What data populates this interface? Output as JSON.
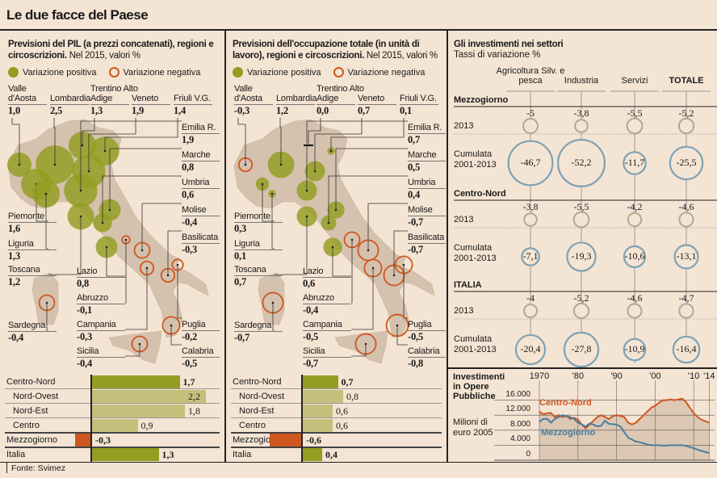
{
  "title": "Le due facce del Paese",
  "source": "Fonte: Svimez",
  "colors": {
    "positive": "#939d20",
    "positive_light": "#c4c07c",
    "negative": "#d0561f",
    "map": "#d4c2ae",
    "circle_2013": "#b5a68f",
    "circle_cum": "#7da2b6",
    "background": "#f4e4d3"
  },
  "legend": {
    "positive": "Variazione positiva",
    "negative": "Variazione negativa"
  },
  "pil": {
    "title_bold": "Previsioni del PIL (a prezzi concatenati), regioni e circoscrizioni.",
    "title_normal": "Nel 2015, valori %",
    "regions": [
      {
        "name": "Valle d'Aosta",
        "value": "1,0"
      },
      {
        "name": "Lombardia",
        "value": "2,5"
      },
      {
        "name": "Trentino Alto Adige",
        "value": "1,3"
      },
      {
        "name": "Veneto",
        "value": "1,9"
      },
      {
        "name": "Friuli V.G.",
        "value": "1,4"
      },
      {
        "name": "Emilia R.",
        "value": "1,9"
      },
      {
        "name": "Marche",
        "value": "0,8"
      },
      {
        "name": "Umbria",
        "value": "0,6"
      },
      {
        "name": "Molise",
        "value": "-0,4"
      },
      {
        "name": "Basilicata",
        "value": "-0,3"
      },
      {
        "name": "Puglia",
        "value": "-0,2"
      },
      {
        "name": "Calabria",
        "value": "-0,5"
      },
      {
        "name": "Piemonte",
        "value": "1,6"
      },
      {
        "name": "Liguria",
        "value": "1,3"
      },
      {
        "name": "Toscana",
        "value": "1,2"
      },
      {
        "name": "Sardegna",
        "value": "-0,4"
      },
      {
        "name": "Lazio",
        "value": "0,8"
      },
      {
        "name": "Abruzzo",
        "value": "-0,1"
      },
      {
        "name": "Campania",
        "value": "-0,3"
      },
      {
        "name": "Sicilia",
        "value": "-0,4"
      }
    ],
    "areas": [
      {
        "name": "Centro-Nord",
        "value": 1.7,
        "label": "1,7",
        "level": "macro"
      },
      {
        "name": "Nord-Ovest",
        "value": 2.2,
        "label": "2,2",
        "level": "sub"
      },
      {
        "name": "Nord-Est",
        "value": 1.8,
        "label": "1,8",
        "level": "sub"
      },
      {
        "name": "Centro",
        "value": 0.9,
        "label": "0,9",
        "level": "sub"
      },
      {
        "name": "Mezzogiorno",
        "value": -0.3,
        "label": "-0,3",
        "level": "macro"
      },
      {
        "name": "Italia",
        "value": 1.3,
        "label": "1,3",
        "level": "macro"
      }
    ]
  },
  "occupazione": {
    "title_bold": "Previsioni dell'occupazione totale (in unità di lavoro), regioni e circoscrizioni.",
    "title_normal": "Nel 2015, valori %",
    "regions": [
      {
        "name": "Valle d'Aosta",
        "value": "-0,3"
      },
      {
        "name": "Lombardia",
        "value": "1,2"
      },
      {
        "name": "Trentino Alto Adige",
        "value": "0,0"
      },
      {
        "name": "Veneto",
        "value": "0,7"
      },
      {
        "name": "Friuli V.G.",
        "value": "0,1"
      },
      {
        "name": "Emilia R.",
        "value": "0,7"
      },
      {
        "name": "Marche",
        "value": "0,5"
      },
      {
        "name": "Umbria",
        "value": "0,4"
      },
      {
        "name": "Molise",
        "value": "-0,7"
      },
      {
        "name": "Basilicata",
        "value": "-0,7"
      },
      {
        "name": "Puglia",
        "value": "-0,5"
      },
      {
        "name": "Calabria",
        "value": "-0,8"
      },
      {
        "name": "Piemonte",
        "value": "0,3"
      },
      {
        "name": "Liguria",
        "value": "0,1"
      },
      {
        "name": "Toscana",
        "value": "0,7"
      },
      {
        "name": "Sardegna",
        "value": "-0,7"
      },
      {
        "name": "Lazio",
        "value": "0,6"
      },
      {
        "name": "Abruzzo",
        "value": "-0,4"
      },
      {
        "name": "Campania",
        "value": "-0,5"
      },
      {
        "name": "Sicilia",
        "value": "-0,7"
      }
    ],
    "areas": [
      {
        "name": "Centro-Nord",
        "value": 0.7,
        "label": "0,7",
        "level": "macro"
      },
      {
        "name": "Nord-Ovest",
        "value": 0.8,
        "label": "0,8",
        "level": "sub"
      },
      {
        "name": "Nord-Est",
        "value": 0.6,
        "label": "0,6",
        "level": "sub"
      },
      {
        "name": "Centro",
        "value": 0.6,
        "label": "0,6",
        "level": "sub"
      },
      {
        "name": "Mezzogiorno",
        "value": -0.6,
        "label": "-0,6",
        "level": "macro"
      },
      {
        "name": "Italia",
        "value": 0.4,
        "label": "0,4",
        "level": "macro"
      }
    ]
  },
  "investimenti": {
    "title": "Gli investimenti nei settori",
    "subtitle": "Tassi di variazione %",
    "sectors": [
      "Agricoltura Silv. e pesca",
      "Industria",
      "Servizi",
      "TOTALE"
    ],
    "row_labels": {
      "y2013": "2013",
      "cumulata": "Cumulata 2001-2013"
    },
    "groups": [
      {
        "name": "Mezzogiorno",
        "y2013": [
          "-5",
          "-3,8",
          "-5,5",
          "-5,2"
        ],
        "cumulata": [
          "-46,7",
          "-52,2",
          "-11,7",
          "-25,5"
        ]
      },
      {
        "name": "Centro-Nord",
        "y2013": [
          "-3,8",
          "-5,5",
          "-4,2",
          "-4,6"
        ],
        "cumulata": [
          "-7,1",
          "-19,3",
          "-10,6",
          "-13,1"
        ]
      },
      {
        "name": "ITALIA",
        "y2013": [
          "-4",
          "-5,2",
          "-4,6",
          "-4,7"
        ],
        "cumulata": [
          "-20,4",
          "-27,8",
          "-10,9",
          "-16,4"
        ]
      }
    ]
  },
  "chart_data": {
    "type": "line",
    "title": "Investimenti in Opere Pubbliche",
    "ylabel": "Milioni di euro 2005",
    "x_ticks": [
      "1970",
      "'80",
      "'90",
      "'00",
      "'10",
      "'14"
    ],
    "x_tick_values": [
      1970,
      1980,
      1990,
      2000,
      2010,
      2014
    ],
    "y_ticks": [
      "16.000",
      "12.000",
      "8.000",
      "4.000",
      "0"
    ],
    "y_tick_values": [
      16000,
      12000,
      8000,
      4000,
      0
    ],
    "xlim": [
      1970,
      2014
    ],
    "ylim": [
      0,
      17000
    ],
    "x_start": 1970,
    "series": [
      {
        "name": "Centro-Nord",
        "color": "#d0561f",
        "values": [
          13000,
          12200,
          12500,
          12600,
          11500,
          12000,
          11500,
          11800,
          11000,
          11300,
          10800,
          9500,
          8500,
          9500,
          10500,
          11500,
          12000,
          11500,
          11000,
          11700,
          12000,
          11800,
          11500,
          10000,
          9500,
          10000,
          11000,
          12000,
          13000,
          14000,
          14500,
          15300,
          16000,
          16000,
          16200,
          16000,
          16200,
          16400,
          15500,
          14000,
          12500,
          11500,
          10800,
          10400,
          10000
        ]
      },
      {
        "name": "Mezzogiorno",
        "color": "#4a7ea0",
        "values": [
          10200,
          11000,
          11000,
          10000,
          11000,
          11500,
          12000,
          11800,
          11500,
          11000,
          10000,
          9500,
          9000,
          9800,
          9500,
          9000,
          9200,
          10500,
          9700,
          9600,
          9500,
          9000,
          7500,
          6000,
          5500,
          5000,
          4800,
          4500,
          4200,
          4000,
          4000,
          4000,
          3900,
          3900,
          4000,
          4000,
          4000,
          4000,
          3800,
          3500,
          3200,
          2800,
          2500,
          2200,
          1900
        ]
      }
    ]
  }
}
